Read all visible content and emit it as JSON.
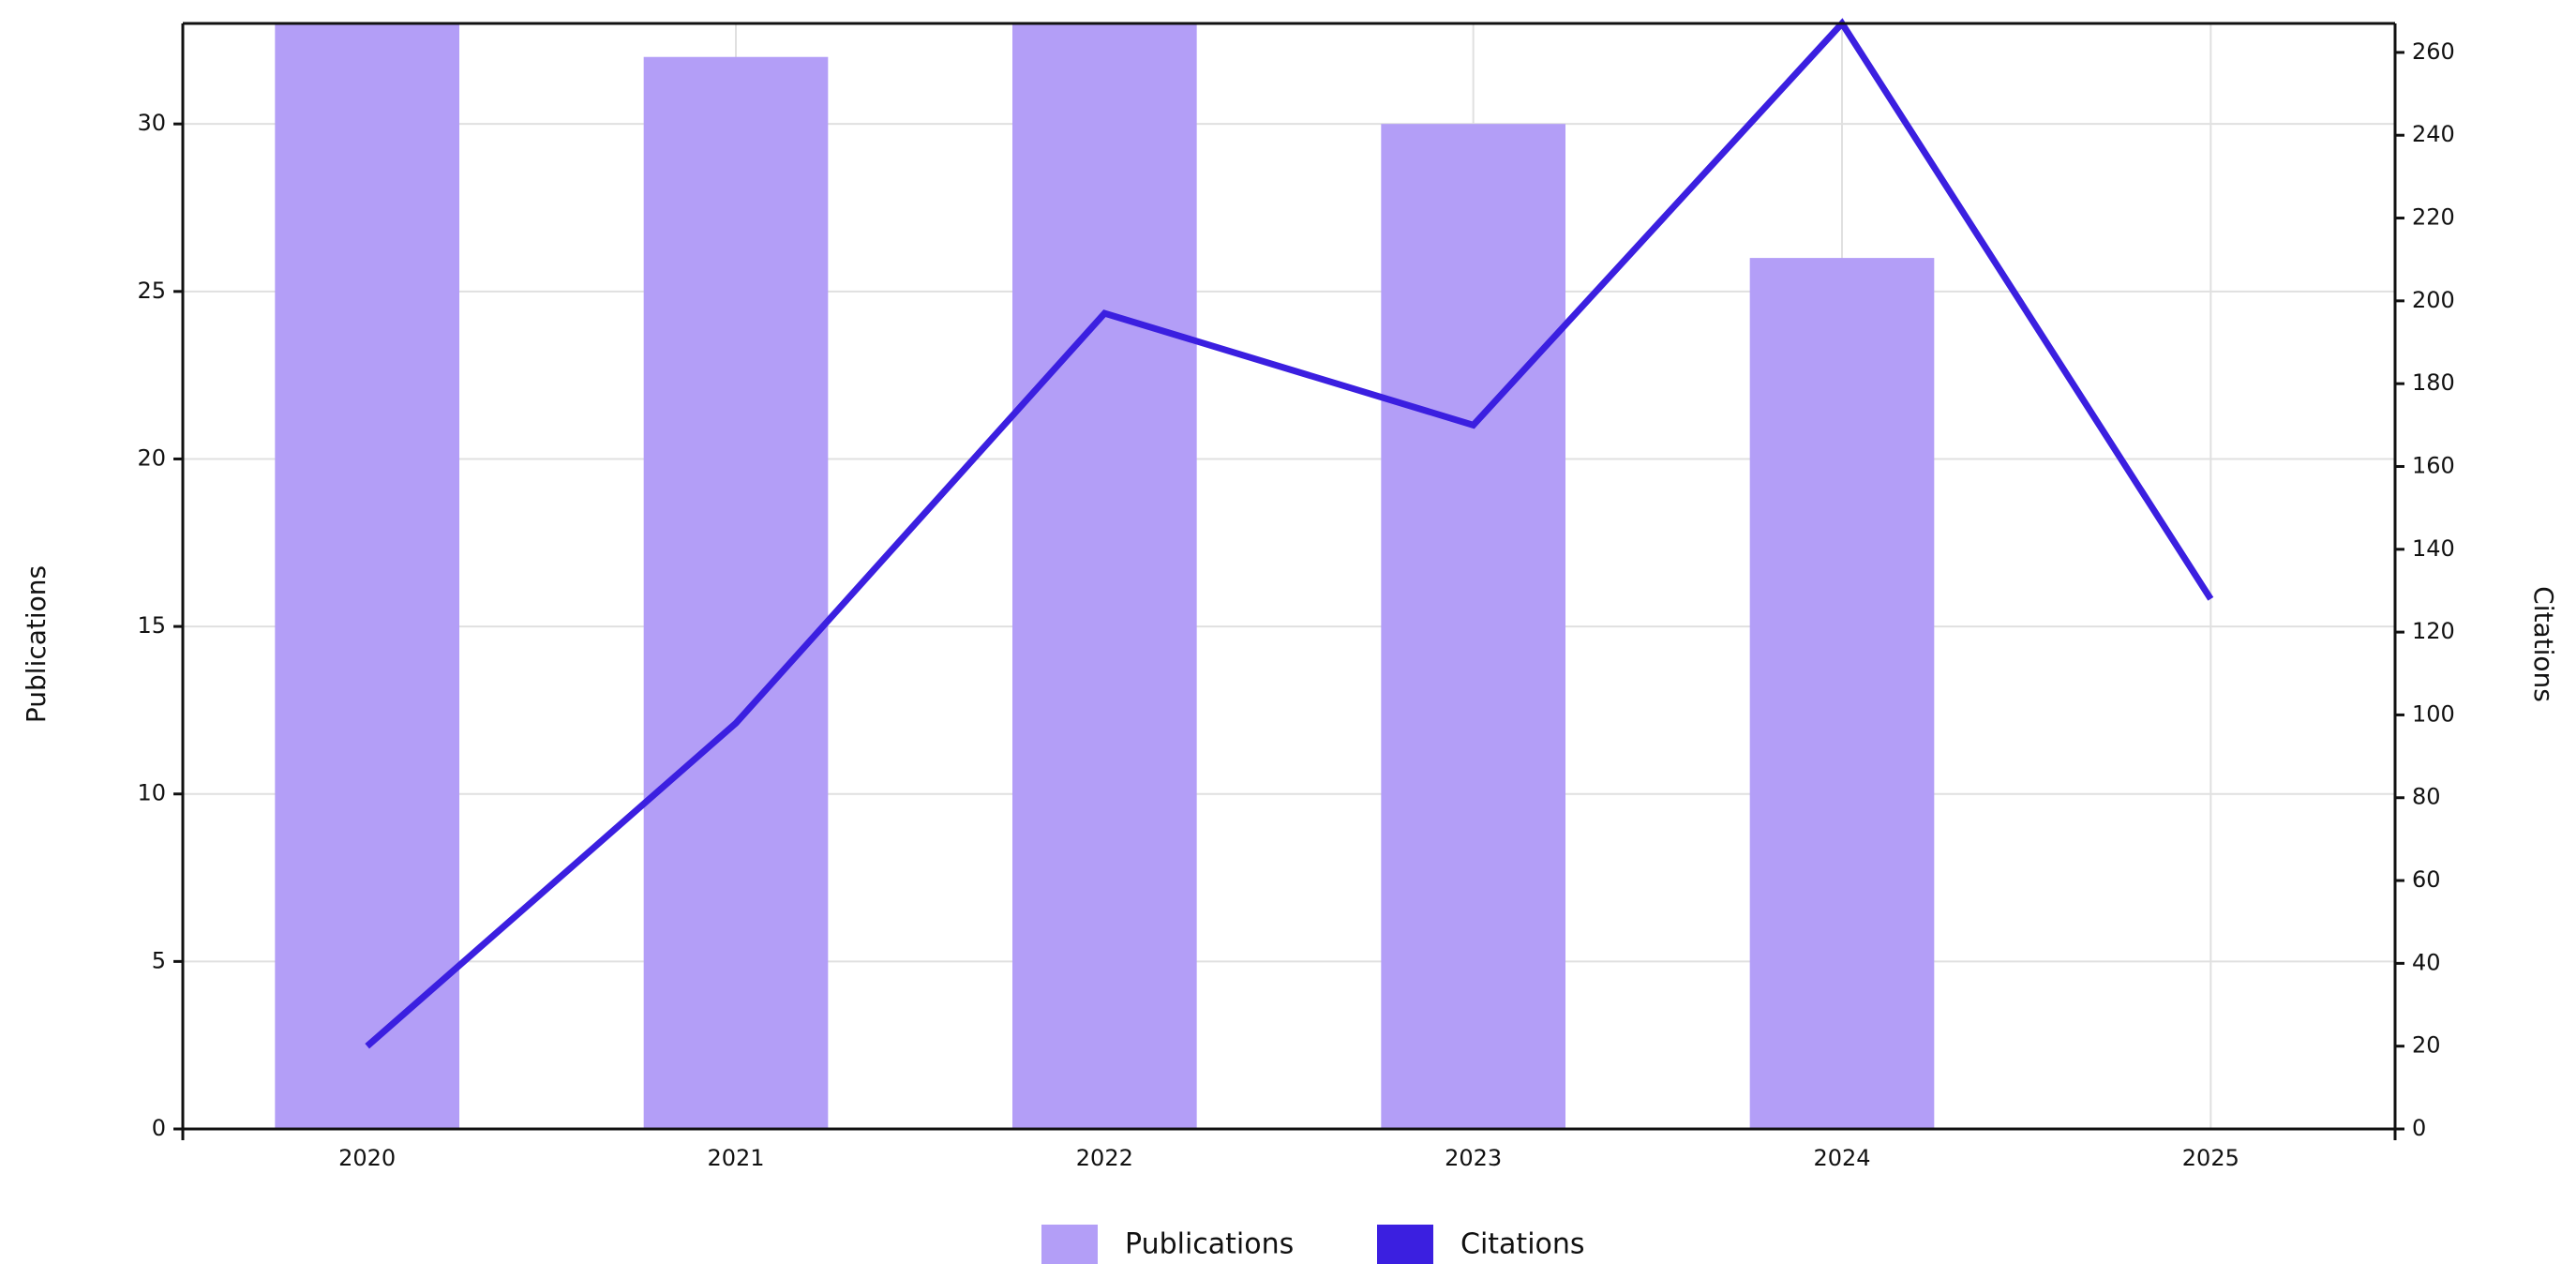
{
  "chart_data": {
    "type": "bar-line",
    "categories": [
      "2020",
      "2021",
      "2022",
      "2023",
      "2024",
      "2025"
    ],
    "series": [
      {
        "name": "Publications",
        "type": "bar",
        "color": "#b39ef7",
        "values": [
          33,
          32,
          33,
          30,
          26,
          null
        ]
      },
      {
        "name": "Citations",
        "type": "line",
        "color": "#3b1fe0",
        "axis": "y2",
        "values": [
          20,
          98,
          197,
          170,
          267,
          128
        ]
      }
    ],
    "ylabel": "Publications",
    "y2label": "Citations",
    "ylim": [
      0,
      33
    ],
    "yticks": [
      0,
      5,
      10,
      15,
      20,
      25,
      30
    ],
    "y2lim": [
      0,
      267
    ],
    "y2ticks": [
      0,
      20,
      40,
      60,
      80,
      100,
      120,
      140,
      160,
      180,
      200,
      220,
      240,
      260
    ],
    "grid": true,
    "legend": "bottom"
  }
}
